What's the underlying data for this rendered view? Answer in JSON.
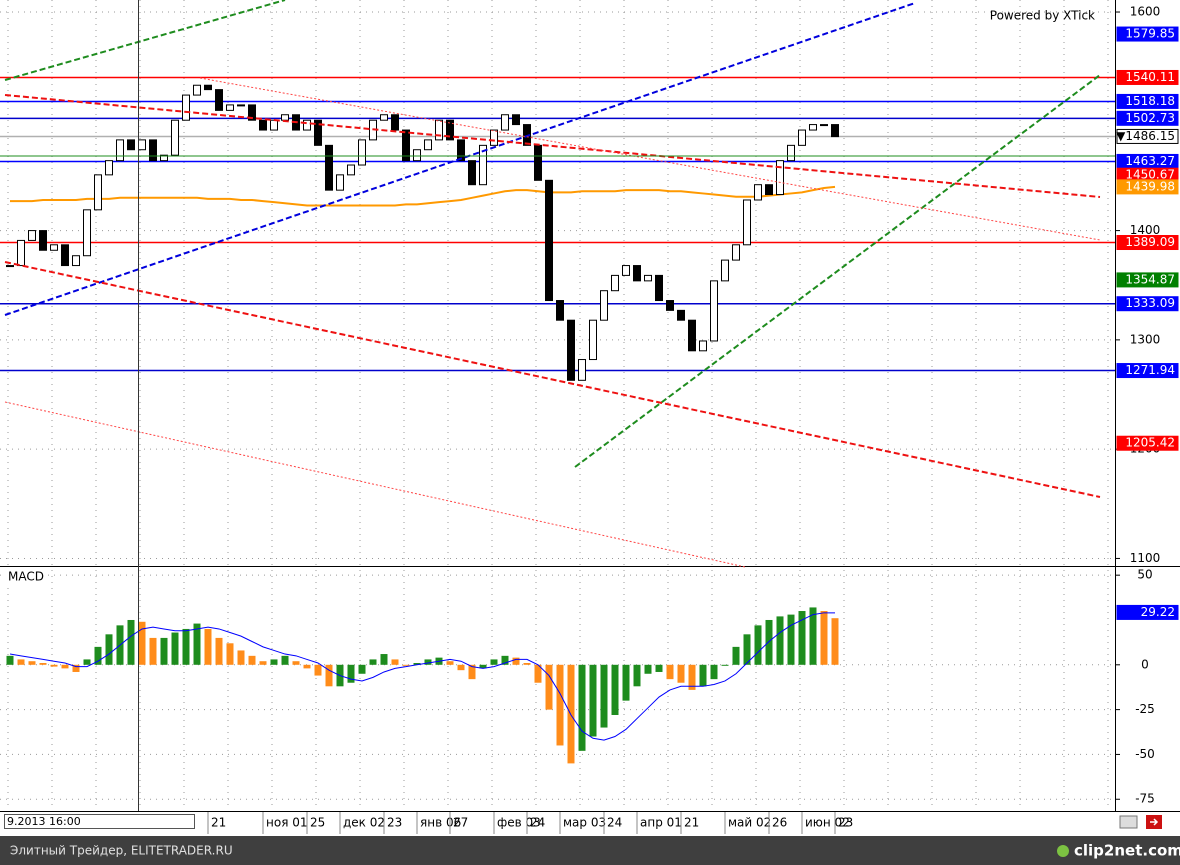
{
  "header": {
    "powered": "Powered by XTick"
  },
  "date_box": "9.2013 16:00",
  "footer": {
    "left": "Элитный Трейдер, ELITETRADER.RU",
    "logo": "clip2net.com"
  },
  "chart_data": [
    {
      "type": "candlestick",
      "categories": [
        null,
        null,
        null,
        null,
        null,
        null,
        null,
        null,
        null,
        null,
        null,
        null,
        null,
        null,
        null,
        null,
        null,
        null,
        "21",
        null,
        null,
        null,
        null,
        "ноя 01",
        null,
        null,
        null,
        "25",
        null,
        null,
        "дек 02",
        null,
        null,
        null,
        "23",
        null,
        null,
        "янв 06",
        null,
        null,
        "27",
        null,
        null,
        null,
        "фев 03",
        null,
        null,
        "24",
        null,
        null,
        "мар 03",
        null,
        null,
        null,
        "24",
        null,
        null,
        "апр 01",
        null,
        null,
        null,
        "21",
        null,
        null,
        null,
        "май 02",
        null,
        null,
        null,
        "26",
        null,
        null,
        "июн 02",
        null,
        null,
        "23"
      ],
      "values": [
        1368,
        1391,
        1400,
        1382,
        1387,
        1368,
        1377,
        1419,
        1451,
        1464,
        1483,
        1474,
        1483,
        1464,
        1469,
        1501,
        1524,
        1533,
        1529,
        1510,
        1515,
        1515,
        1501,
        1492,
        1501,
        1506,
        1492,
        1501,
        1478,
        1437,
        1451,
        1460,
        1483,
        1501,
        1506,
        1492,
        1464,
        1474,
        1483,
        1501,
        1483,
        1464,
        1442,
        1478,
        1492,
        1506,
        1497,
        1478,
        1446,
        1336,
        1318,
        1263,
        1282,
        1318,
        1345,
        1359,
        1368,
        1354,
        1359,
        1336,
        1327,
        1318,
        1290,
        1299,
        1354,
        1373,
        1387,
        1428,
        1442,
        1433,
        1464,
        1478,
        1492,
        1497,
        1497,
        1486
      ],
      "up_color": "#ffffff",
      "down_color": "#000000",
      "ma": {
        "color": "#ff9900",
        "values": [
          1427,
          1427,
          1427,
          1428,
          1428,
          1428,
          1428,
          1429,
          1429,
          1429,
          1430,
          1430,
          1430,
          1430,
          1430,
          1430,
          1430,
          1430,
          1429,
          1429,
          1429,
          1428,
          1428,
          1427,
          1426,
          1425,
          1424,
          1423,
          1423,
          1423,
          1423,
          1423,
          1423,
          1423,
          1423,
          1423,
          1424,
          1424,
          1425,
          1426,
          1427,
          1428,
          1430,
          1432,
          1434,
          1436,
          1437,
          1437,
          1436,
          1435,
          1435,
          1435,
          1436,
          1436,
          1436,
          1436,
          1437,
          1437,
          1437,
          1437,
          1436,
          1436,
          1435,
          1434,
          1433,
          1432,
          1431,
          1431,
          1431,
          1432,
          1433,
          1434,
          1435,
          1437,
          1439,
          1440
        ]
      },
      "ylim": [
        1611,
        1094
      ],
      "yticks": [
        1600,
        1400,
        1300,
        1200,
        1100
      ],
      "grid": true,
      "levels": [
        {
          "value": 1579.85,
          "color": "#0000ff"
        },
        {
          "value": 1540.11,
          "color": "#ff0000",
          "line": "#ff0000"
        },
        {
          "value": 1518.18,
          "color": "#0000ff",
          "line": "#0000ff"
        },
        {
          "value": 1502.73,
          "color": "#0000ff",
          "line": "#0000cc"
        },
        {
          "value": 1486.15,
          "label": "▼1486.15",
          "color": "#ffffff",
          "line": "#b0b0b0"
        },
        {
          "value": 1463.27,
          "color": "#0000ff",
          "line": "#0000ff"
        },
        {
          "value": 1450.67,
          "color": "#ff0000"
        },
        {
          "value": 1439.98,
          "color": "#ff9900"
        },
        {
          "value": 1389.09,
          "color": "#ff0000",
          "line": "#ff0000"
        },
        {
          "value": 1354.87,
          "color": "#008000"
        },
        {
          "value": 1333.09,
          "color": "#0000ff",
          "line": "#0000cc"
        },
        {
          "value": 1271.94,
          "color": "#0000ff",
          "line": "#0000cc"
        },
        {
          "value": 1205.42,
          "color": "#ff0000"
        }
      ]
    },
    {
      "type": "histogram",
      "title": "MACD",
      "values": [
        5,
        3,
        2,
        1,
        -1,
        -2,
        -4,
        3,
        10,
        17,
        22,
        25,
        24,
        15,
        15,
        18,
        20,
        23,
        20,
        15,
        12,
        8,
        5,
        2,
        3,
        5,
        2,
        -2,
        -6,
        -12,
        -12,
        -10,
        -5,
        3,
        6,
        3,
        0,
        1,
        3,
        4,
        2,
        -3,
        -8,
        -2,
        3,
        5,
        4,
        1,
        -10,
        -25,
        -45,
        -55,
        -48,
        -40,
        -35,
        -28,
        -20,
        -12,
        -5,
        -4,
        -8,
        -10,
        -14,
        -12,
        -8,
        0,
        10,
        17,
        22,
        25,
        27,
        28,
        30,
        32,
        30,
        26
      ],
      "up_color": "#1e8c1e",
      "down_color": "#ff8c1a",
      "signal": {
        "color": "#0000ff",
        "values": [
          6,
          5,
          4,
          3,
          2,
          1,
          -1,
          -1,
          2,
          6,
          11,
          16,
          20,
          21,
          20,
          19,
          19,
          20,
          21,
          20,
          18,
          16,
          13,
          10,
          8,
          6,
          5,
          3,
          1,
          -3,
          -6,
          -8,
          -9,
          -7,
          -4,
          -2,
          -1,
          0,
          1,
          2,
          3,
          2,
          -1,
          -2,
          -1,
          1,
          3,
          3,
          0,
          -6,
          -16,
          -28,
          -37,
          -41,
          -42,
          -40,
          -36,
          -30,
          -24,
          -18,
          -14,
          -12,
          -12,
          -12,
          -11,
          -9,
          -5,
          1,
          7,
          13,
          18,
          22,
          25,
          28,
          29,
          29
        ]
      },
      "ylim": [
        54,
        -81
      ],
      "yticks": [
        50,
        0,
        -25,
        -50,
        -75
      ],
      "grid": true,
      "levels": [
        {
          "value": 29.22,
          "color": "#0000ff"
        }
      ]
    }
  ]
}
